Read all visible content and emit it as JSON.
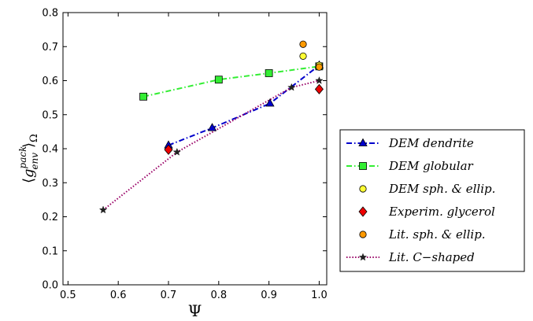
{
  "chart_data": {
    "type": "scatter",
    "xlabel": "Ψ",
    "ylabel": "⟨g_env^pack⟩_Ω",
    "ylabel_parts": {
      "lbrack": "⟨",
      "g": "g",
      "sup": "pack",
      "sub": "env",
      "rbrack": "⟩",
      "omega": "Ω"
    },
    "xlim": [
      0.49,
      1.015
    ],
    "ylim": [
      0.0,
      0.8
    ],
    "xticks": [
      "0.5",
      "0.6",
      "0.7",
      "0.8",
      "0.9",
      "1.0"
    ],
    "xtick_values": [
      0.5,
      0.6,
      0.7,
      0.8,
      0.9,
      1.0
    ],
    "yticks": [
      "0.0",
      "0.1",
      "0.2",
      "0.3",
      "0.4",
      "0.5",
      "0.6",
      "0.7",
      "0.8"
    ],
    "ytick_values": [
      0.0,
      0.1,
      0.2,
      0.3,
      0.4,
      0.5,
      0.6,
      0.7,
      0.8
    ],
    "grid": false,
    "legend_placement": "outside-right",
    "series": [
      {
        "name": "DEM dendrite",
        "marker": "triangle",
        "color": "#0000cc",
        "line": "dashdot",
        "points": [
          [
            0.7,
            0.41
          ],
          [
            0.787,
            0.461
          ],
          [
            0.902,
            0.533
          ],
          [
            1.0,
            0.645
          ]
        ]
      },
      {
        "name": "DEM globular",
        "marker": "square",
        "color": "#33ee33",
        "line": "dashdot",
        "points": [
          [
            0.65,
            0.553
          ],
          [
            0.8,
            0.603
          ],
          [
            0.9,
            0.622
          ],
          [
            1.0,
            0.642
          ]
        ]
      },
      {
        "name": "DEM sph. & ellip.",
        "marker": "circle",
        "color": "#ffff33",
        "line": "none",
        "points": [
          [
            0.968,
            0.672
          ],
          [
            1.0,
            0.645
          ]
        ]
      },
      {
        "name": "Experim. glycerol",
        "marker": "diamond",
        "color": "#ee0000",
        "line": "none",
        "points": [
          [
            0.7,
            0.397
          ],
          [
            1.0,
            0.575
          ]
        ]
      },
      {
        "name": "Lit. sph. & ellip.",
        "marker": "circle",
        "color": "#ff9900",
        "line": "none",
        "points": [
          [
            0.968,
            0.707
          ],
          [
            1.0,
            0.64
          ]
        ]
      },
      {
        "name": "Lit. C−shaped",
        "marker": "star",
        "color": "#222222",
        "line": "dotted",
        "linecolor": "#990066",
        "points": [
          [
            0.57,
            0.22
          ],
          [
            0.717,
            0.39
          ],
          [
            0.945,
            0.58
          ],
          [
            1.0,
            0.6
          ]
        ]
      }
    ]
  }
}
